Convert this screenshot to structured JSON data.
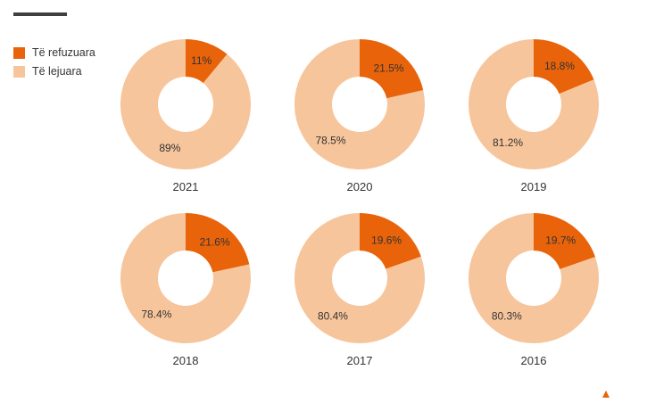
{
  "colors": {
    "refused": "#e8630a",
    "approved": "#f7c59b",
    "label_text": "#333333",
    "rule": "#3f3f3f"
  },
  "legend": {
    "items": [
      {
        "label": "Të refuzuara",
        "color": "#e8630a"
      },
      {
        "label": "Të lejuara",
        "color": "#f7c59b"
      }
    ]
  },
  "chart_data": [
    {
      "type": "pie",
      "title": "2021",
      "categories": [
        "Të refuzuara",
        "Të lejuara"
      ],
      "values": [
        11,
        89
      ],
      "labels": [
        "11%",
        "89%"
      ]
    },
    {
      "type": "pie",
      "title": "2020",
      "categories": [
        "Të refuzuara",
        "Të lejuara"
      ],
      "values": [
        21.5,
        78.5
      ],
      "labels": [
        "21.5%",
        "78.5%"
      ]
    },
    {
      "type": "pie",
      "title": "2019",
      "categories": [
        "Të refuzuara",
        "Të lejuara"
      ],
      "values": [
        18.8,
        81.2
      ],
      "labels": [
        "18.8%",
        "81.2%"
      ]
    },
    {
      "type": "pie",
      "title": "2018",
      "categories": [
        "Të refuzuara",
        "Të lejuara"
      ],
      "values": [
        21.6,
        78.4
      ],
      "labels": [
        "21.6%",
        "78.4%"
      ]
    },
    {
      "type": "pie",
      "title": "2017",
      "categories": [
        "Të refuzuara",
        "Të lejuara"
      ],
      "values": [
        19.6,
        80.4
      ],
      "labels": [
        "19.6%",
        "80.4%"
      ]
    },
    {
      "type": "pie",
      "title": "2016",
      "categories": [
        "Të refuzuara",
        "Të lejuara"
      ],
      "values": [
        19.7,
        80.3
      ],
      "labels": [
        "19.7%",
        "80.3%"
      ]
    }
  ]
}
